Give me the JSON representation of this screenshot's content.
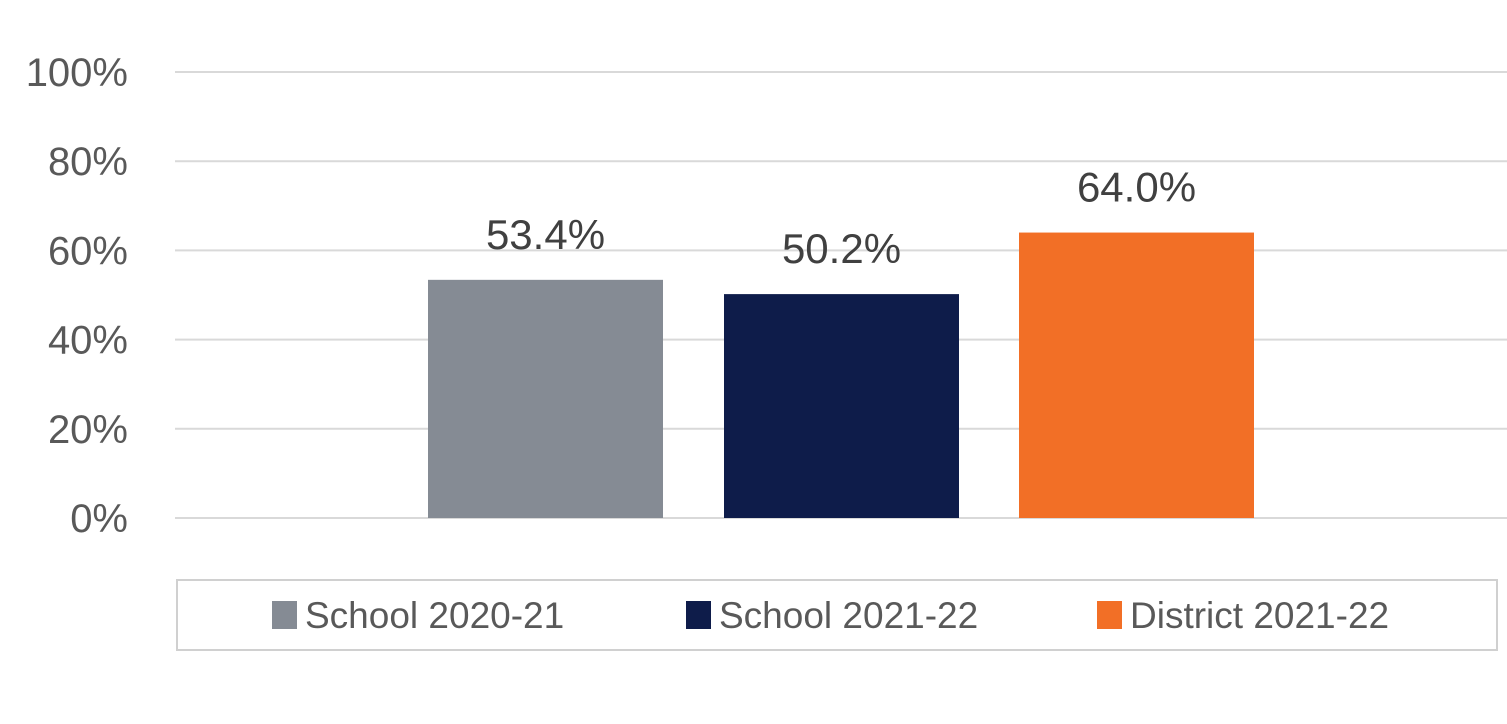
{
  "chart_data": {
    "type": "bar",
    "title": "",
    "xlabel": "",
    "ylabel": "",
    "ylim": [
      0,
      100
    ],
    "yticks": [
      0,
      20,
      40,
      60,
      80,
      100
    ],
    "ytick_labels": [
      "0%",
      "20%",
      "40%",
      "60%",
      "80%",
      "100%"
    ],
    "grid": true,
    "legend_position": "bottom",
    "categories": [
      ""
    ],
    "series": [
      {
        "name": "School 2020-21",
        "values": [
          53.4
        ],
        "label": "53.4%",
        "color": "#858B94"
      },
      {
        "name": "School 2021-22",
        "values": [
          50.2
        ],
        "label": "50.2%",
        "color": "#0E1C4A"
      },
      {
        "name": "District 2021-22",
        "values": [
          64.0
        ],
        "label": "64.0%",
        "color": "#F26F26"
      }
    ]
  }
}
